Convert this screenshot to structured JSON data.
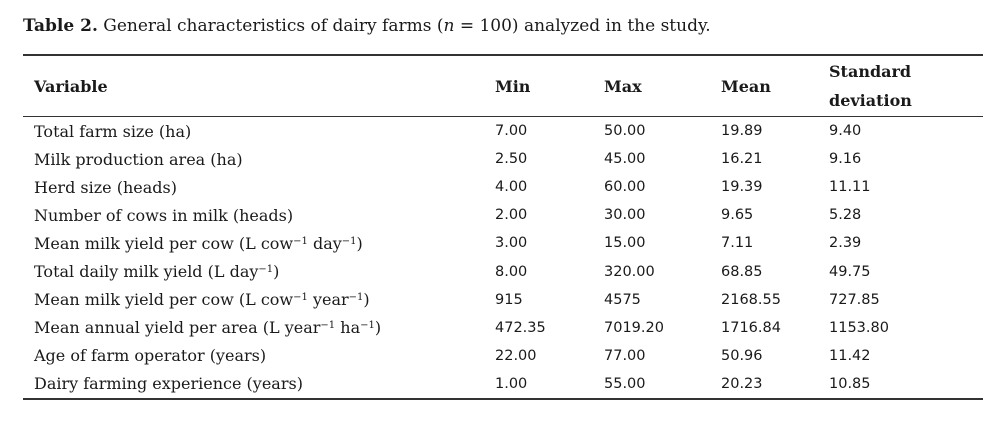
{
  "caption": {
    "label": "Table 2.",
    "text_before": "General characteristics of dairy farms (",
    "n_symbol": "n",
    "text_after": " = 100) analyzed in the study."
  },
  "table": {
    "headers": {
      "variable": "Variable",
      "min": "Min",
      "max": "Max",
      "mean": "Mean",
      "sd_line1": "Standard",
      "sd_line2": "deviation"
    },
    "rows": [
      {
        "label": "Total farm size (ha)",
        "unit_parts": [],
        "min": "7.00",
        "max": "50.00",
        "mean": "19.89",
        "sd": "9.40"
      },
      {
        "label": "Milk production area (ha)",
        "unit_parts": [],
        "min": "2.50",
        "max": "45.00",
        "mean": "16.21",
        "sd": "9.16"
      },
      {
        "label": "Herd size (heads)",
        "unit_parts": [],
        "min": "4.00",
        "max": "60.00",
        "mean": "19.39",
        "sd": "11.11"
      },
      {
        "label": "Number of cows in milk (heads)",
        "unit_parts": [],
        "min": "2.00",
        "max": "30.00",
        "mean": "9.65",
        "sd": "5.28"
      },
      {
        "label": "Mean milk yield per cow (L cow",
        "unit_parts": [
          "−1",
          " day",
          "−1",
          ")"
        ],
        "min": "3.00",
        "max": "15.00",
        "mean": "7.11",
        "sd": "2.39"
      },
      {
        "label": "Total daily milk yield (L day",
        "unit_parts": [
          "−1",
          ")"
        ],
        "min": "8.00",
        "max": "320.00",
        "mean": "68.85",
        "sd": "49.75"
      },
      {
        "label": "Mean milk yield per cow (L cow",
        "unit_parts": [
          "−1",
          " year",
          "−1",
          ")"
        ],
        "min": "915",
        "max": "4575",
        "mean": "2168.55",
        "sd": "727.85"
      },
      {
        "label": "Mean annual yield per area (L year",
        "unit_parts": [
          "−1",
          " ha",
          "−1",
          ")"
        ],
        "min": "472.35",
        "max": "7019.20",
        "mean": "1716.84",
        "sd": "1153.80"
      },
      {
        "label": "Age of farm operator (years)",
        "unit_parts": [],
        "min": "22.00",
        "max": "77.00",
        "mean": "50.96",
        "sd": "11.42"
      },
      {
        "label": "Dairy farming experience (years)",
        "unit_parts": [],
        "min": "1.00",
        "max": "55.00",
        "mean": "20.23",
        "sd": "10.85"
      }
    ]
  }
}
